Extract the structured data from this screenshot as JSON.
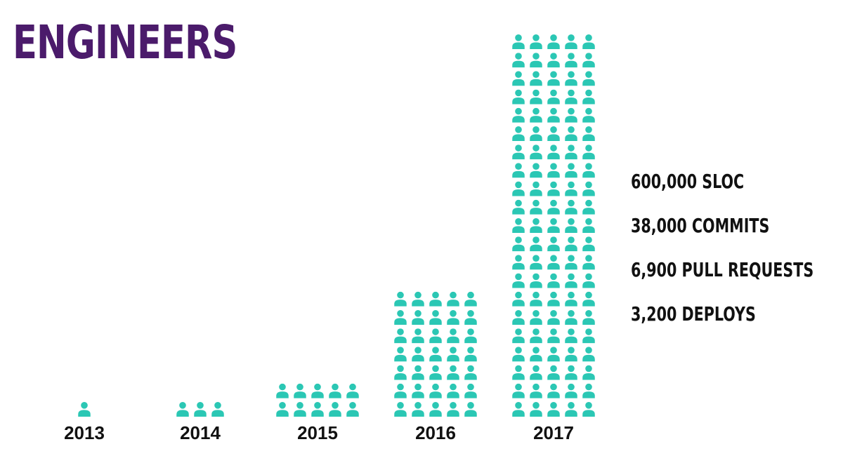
{
  "title": "ENGINEERS",
  "colors": {
    "title": "#4b1b6b",
    "icon": "#2bc7b4",
    "text": "#111111"
  },
  "chart_data": {
    "type": "bar",
    "title": "ENGINEERS",
    "unit_icon": "person-icon",
    "categories": [
      "2013",
      "2014",
      "2015",
      "2016",
      "2017"
    ],
    "values": [
      1,
      3,
      10,
      35,
      105
    ],
    "xlabel": "",
    "ylabel": ""
  },
  "stats": [
    "600,000 SLOC",
    "38,000 COMMITS",
    "6,900 PULL REQUESTS",
    "3,200 DEPLOYS"
  ]
}
